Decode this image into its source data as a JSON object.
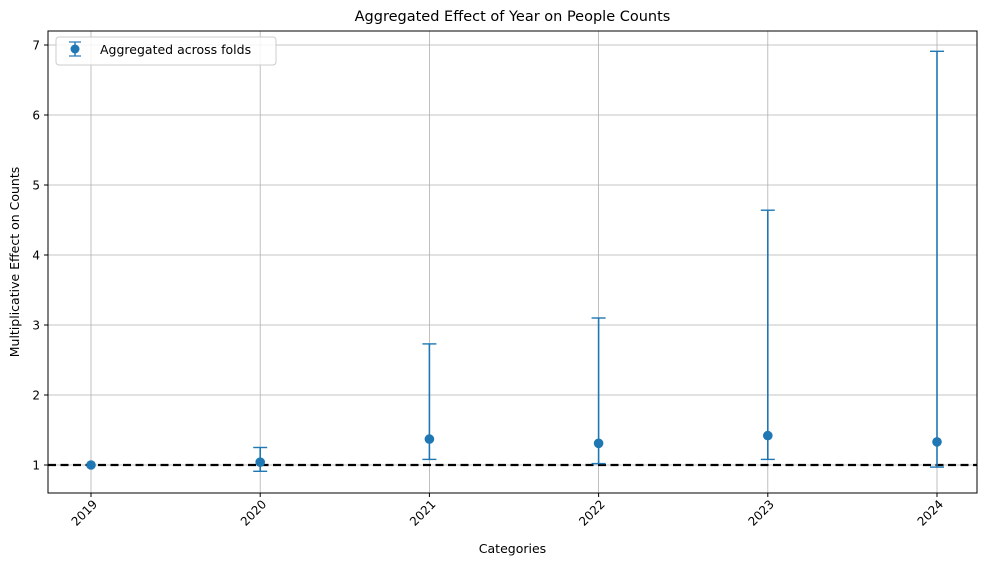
{
  "chart_data": {
    "type": "scatter",
    "title": "Aggregated Effect of Year on People Counts",
    "xlabel": "Categories",
    "ylabel": "Multiplicative Effect on Counts",
    "categories": [
      "2019",
      "2020",
      "2021",
      "2022",
      "2023",
      "2024"
    ],
    "series": [
      {
        "name": "Aggregated across folds",
        "color": "#1f77b4",
        "values": [
          1.0,
          1.04,
          1.37,
          1.31,
          1.42,
          1.33
        ],
        "lower": [
          1.0,
          0.91,
          1.08,
          1.02,
          1.08,
          0.97
        ],
        "upper": [
          1.0,
          1.25,
          2.73,
          3.1,
          4.64,
          6.91
        ]
      }
    ],
    "reference_line": {
      "y": 1.0,
      "style": "dashed",
      "color": "#000000"
    },
    "ylim": [
      0.6,
      7.2
    ],
    "yticks": [
      1,
      2,
      3,
      4,
      5,
      6,
      7
    ],
    "grid": true,
    "legend_position": "upper-left"
  }
}
